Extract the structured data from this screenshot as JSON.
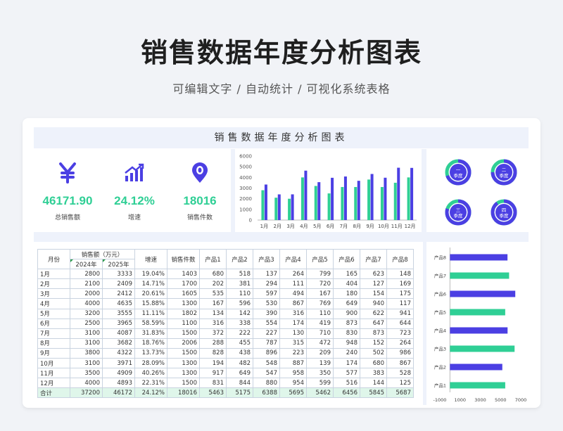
{
  "page": {
    "title": "销售数据年度分析图表",
    "subtitle": "可编辑文字 / 自动统计 / 可视化系统表格",
    "sheet_title": "销售数据年度分析图表"
  },
  "kpis": [
    {
      "icon": "yen-icon",
      "value": "46171.90",
      "label": "总销售额"
    },
    {
      "icon": "growth-chart-icon",
      "value": "24.12%",
      "label": "增速"
    },
    {
      "icon": "location-pin-icon",
      "value": "18016",
      "label": "销售件数"
    }
  ],
  "colors": {
    "green": "#2fcf95",
    "blue": "#4b3fe3",
    "grid": "#c9d3e0"
  },
  "chart_data": [
    {
      "type": "bar",
      "categories": [
        "1月",
        "2月",
        "3月",
        "4月",
        "5月",
        "6月",
        "7月",
        "8月",
        "9月",
        "10月",
        "11月",
        "12月"
      ],
      "series": [
        {
          "values": [
            2800,
            2100,
            2000,
            4000,
            3200,
            2500,
            3100,
            3100,
            3800,
            3100,
            3500,
            4000
          ]
        },
        {
          "values": [
            3333,
            2409,
            2412,
            4635,
            3555,
            3965,
            4087,
            3682,
            4322,
            3971,
            4909,
            4893
          ]
        }
      ],
      "ylim": [
        0,
        6000
      ],
      "yticks": [
        "0",
        "1000",
        "2000",
        "3000",
        "4000",
        "5000",
        "6000"
      ]
    },
    {
      "type": "bar",
      "orientation": "horizontal",
      "categories": [
        "产品8",
        "产品7",
        "产品6",
        "产品5",
        "产品4",
        "产品3",
        "产品2",
        "产品1"
      ],
      "values": [
        5687,
        5845,
        6456,
        5462,
        5695,
        6388,
        5175,
        5463
      ],
      "xlim": [
        -1000,
        7000
      ],
      "xticks": [
        "-1000",
        "1000",
        "3000",
        "5000",
        "7000"
      ]
    }
  ],
  "quarters": [
    {
      "label_top": "一",
      "label_bottom": "季度",
      "fraction": 0.7
    },
    {
      "label_top": "二",
      "label_bottom": "季度",
      "fraction": 0.75
    },
    {
      "label_top": "三",
      "label_bottom": "季度",
      "fraction": 0.8
    },
    {
      "label_top": "四",
      "label_bottom": "季度",
      "fraction": 0.9
    }
  ],
  "table": {
    "headers": {
      "month": "月份",
      "sales": "销售额（万元）",
      "y2024": "2024年",
      "y2025": "2025年",
      "growth": "增速",
      "units": "销售件数",
      "products": [
        "产品1",
        "产品2",
        "产品3",
        "产品4",
        "产品5",
        "产品6",
        "产品7",
        "产品8"
      ]
    },
    "rows": [
      [
        "1月",
        "2800",
        "3333",
        "19.04%",
        "1403",
        "680",
        "518",
        "137",
        "264",
        "799",
        "165",
        "623",
        "148"
      ],
      [
        "2月",
        "2100",
        "2409",
        "14.71%",
        "1700",
        "202",
        "381",
        "294",
        "111",
        "720",
        "404",
        "127",
        "169"
      ],
      [
        "3月",
        "2000",
        "2412",
        "20.61%",
        "1605",
        "535",
        "110",
        "597",
        "494",
        "167",
        "180",
        "154",
        "175"
      ],
      [
        "4月",
        "4000",
        "4635",
        "15.88%",
        "1300",
        "167",
        "596",
        "530",
        "867",
        "769",
        "649",
        "940",
        "117"
      ],
      [
        "5月",
        "3200",
        "3555",
        "11.11%",
        "1802",
        "134",
        "142",
        "390",
        "316",
        "110",
        "900",
        "622",
        "941"
      ],
      [
        "6月",
        "2500",
        "3965",
        "58.59%",
        "1100",
        "316",
        "338",
        "554",
        "174",
        "419",
        "873",
        "647",
        "644"
      ],
      [
        "7月",
        "3100",
        "4087",
        "31.83%",
        "1500",
        "372",
        "222",
        "227",
        "130",
        "710",
        "830",
        "873",
        "723"
      ],
      [
        "8月",
        "3100",
        "3682",
        "18.76%",
        "2006",
        "288",
        "455",
        "787",
        "315",
        "472",
        "948",
        "152",
        "264"
      ],
      [
        "9月",
        "3800",
        "4322",
        "13.73%",
        "1500",
        "828",
        "438",
        "896",
        "223",
        "209",
        "240",
        "502",
        "986"
      ],
      [
        "10月",
        "3100",
        "3971",
        "28.09%",
        "1300",
        "194",
        "482",
        "548",
        "887",
        "139",
        "174",
        "680",
        "867"
      ],
      [
        "11月",
        "3500",
        "4909",
        "40.26%",
        "1300",
        "917",
        "649",
        "547",
        "958",
        "350",
        "577",
        "383",
        "528"
      ],
      [
        "12月",
        "4000",
        "4893",
        "22.31%",
        "1500",
        "831",
        "844",
        "880",
        "954",
        "599",
        "516",
        "144",
        "125"
      ]
    ],
    "total": [
      "合计",
      "37200",
      "46172",
      "24.12%",
      "18016",
      "5463",
      "5175",
      "6388",
      "5695",
      "5462",
      "6456",
      "5845",
      "5687"
    ]
  }
}
